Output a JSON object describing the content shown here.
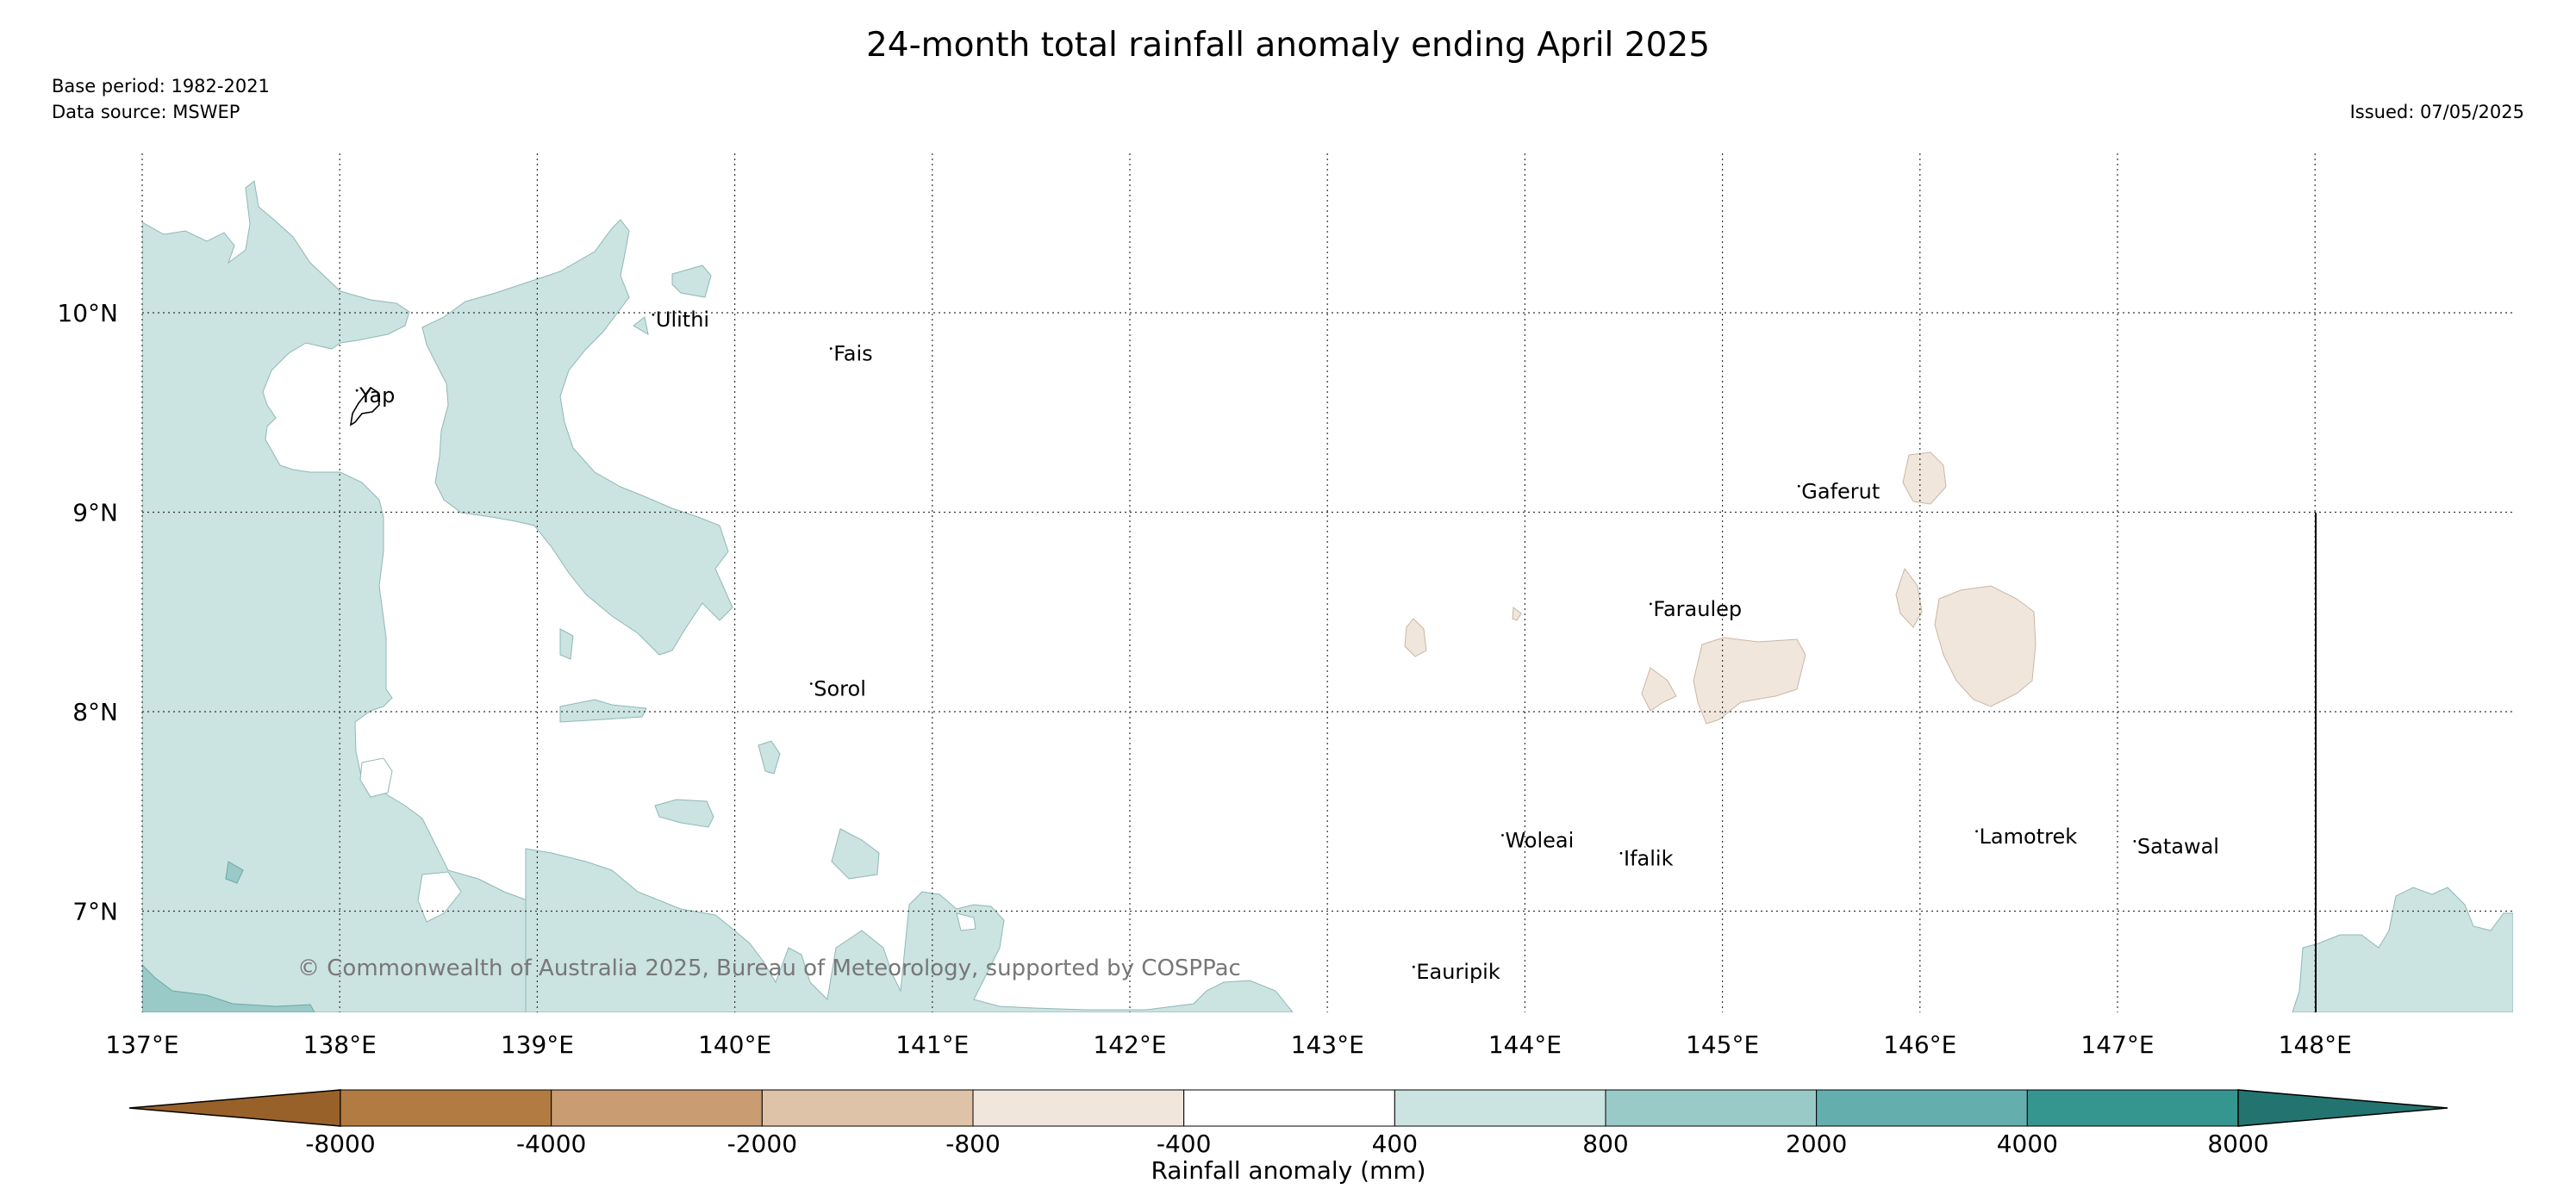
{
  "title": "24-month total rainfall anomaly ending April 2025",
  "base_period": "Base period: 1982-2021",
  "data_source": "Data source: MSWEP",
  "issued": "Issued: 07/05/2025",
  "credit": "© Commonwealth of Australia 2025, Bureau of Meteorology, supported by COSPPac",
  "map": {
    "lon_range": [
      137,
      149
    ],
    "lat_range": [
      6.5,
      10.8
    ],
    "lon_ticks": [
      "137°E",
      "138°E",
      "139°E",
      "140°E",
      "141°E",
      "142°E",
      "143°E",
      "144°E",
      "145°E",
      "146°E",
      "147°E",
      "148°E"
    ],
    "lat_ticks": [
      "10°N",
      "9°N",
      "8°N",
      "7°N"
    ],
    "gridlines": true
  },
  "places": [
    {
      "name": "Ulithi",
      "lon": 139.6,
      "lat": 9.93
    },
    {
      "name": "Fais",
      "lon": 140.5,
      "lat": 9.76
    },
    {
      "name": "Yap",
      "lon": 138.1,
      "lat": 9.55
    },
    {
      "name": "Gaferut",
      "lon": 145.4,
      "lat": 9.07
    },
    {
      "name": "Faraulep",
      "lon": 144.65,
      "lat": 8.48
    },
    {
      "name": "Sorol",
      "lon": 140.4,
      "lat": 8.08
    },
    {
      "name": "Woleai",
      "lon": 143.9,
      "lat": 7.32
    },
    {
      "name": "Ifalik",
      "lon": 144.5,
      "lat": 7.23
    },
    {
      "name": "Lamotrek",
      "lon": 146.3,
      "lat": 7.34
    },
    {
      "name": "Satawal",
      "lon": 147.1,
      "lat": 7.29
    },
    {
      "name": "Eauripik",
      "lon": 143.45,
      "lat": 6.66
    }
  ],
  "legend": {
    "title": "Rainfall anomaly (mm)",
    "tick_labels": [
      "-8000",
      "-4000",
      "-2000",
      "-800",
      "-400",
      "400",
      "800",
      "2000",
      "4000",
      "8000"
    ],
    "colors": [
      "#98612a",
      "#b27b42",
      "#c99c72",
      "#dfc3a8",
      "#f0e6dc",
      "#ffffff",
      "#cbe3e1",
      "#99cac8",
      "#64afad",
      "#35958f",
      "#237470"
    ]
  }
}
